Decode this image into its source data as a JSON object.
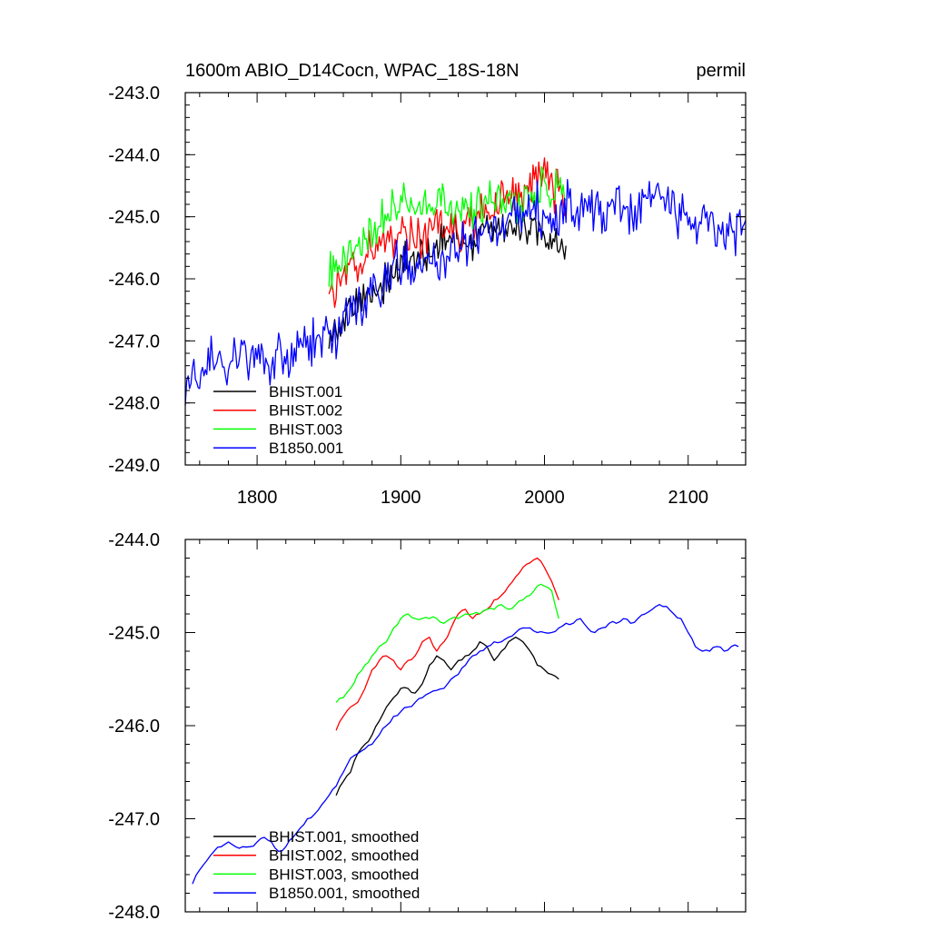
{
  "chart_data": [
    {
      "type": "line",
      "title": "1600m ABIO_D14Cocn, WPAC_18S-18N",
      "units": "permil",
      "xlim": [
        1750,
        2140
      ],
      "ylim": [
        -249.0,
        -243.0
      ],
      "xticks": [
        "1800",
        "1900",
        "2000",
        "2100"
      ],
      "yticks": [
        "-243.0",
        "-244.0",
        "-245.0",
        "-246.0",
        "-247.0",
        "-248.0",
        "-249.0"
      ],
      "legend": {
        "position": "bottom-left"
      },
      "series": [
        {
          "name": "BHIST.001",
          "color": "#000000",
          "noise": 0.3,
          "x": [
            1850,
            1855,
            1860,
            1870,
            1880,
            1890,
            1900,
            1910,
            1920,
            1930,
            1940,
            1950,
            1960,
            1970,
            1980,
            1990,
            2000,
            2005,
            2010,
            2015
          ],
          "y": [
            -246.9,
            -246.8,
            -246.7,
            -246.4,
            -246.2,
            -246.0,
            -245.8,
            -245.7,
            -245.6,
            -245.4,
            -245.3,
            -245.4,
            -245.2,
            -245.1,
            -245.2,
            -245.2,
            -245.3,
            -245.4,
            -245.5,
            -245.6
          ]
        },
        {
          "name": "BHIST.002",
          "color": "#ff0000",
          "noise": 0.35,
          "x": [
            1850,
            1855,
            1860,
            1870,
            1880,
            1890,
            1900,
            1910,
            1920,
            1930,
            1940,
            1950,
            1960,
            1970,
            1980,
            1990,
            2000,
            2005,
            2010,
            2015
          ],
          "y": [
            -246.0,
            -246.0,
            -245.9,
            -245.8,
            -245.5,
            -245.4,
            -245.3,
            -245.3,
            -245.2,
            -245.1,
            -245.3,
            -245.0,
            -244.9,
            -244.8,
            -244.6,
            -244.4,
            -244.3,
            -244.5,
            -244.6,
            -244.8
          ]
        },
        {
          "name": "BHIST.003",
          "color": "#00ff00",
          "noise": 0.35,
          "x": [
            1850,
            1855,
            1860,
            1870,
            1880,
            1890,
            1900,
            1910,
            1920,
            1930,
            1940,
            1950,
            1960,
            1970,
            1980,
            1990,
            2000,
            2005,
            2010,
            2015
          ],
          "y": [
            -245.9,
            -245.8,
            -245.7,
            -245.5,
            -245.2,
            -245.0,
            -244.85,
            -244.85,
            -244.85,
            -244.9,
            -244.9,
            -244.85,
            -244.8,
            -244.8,
            -244.75,
            -244.7,
            -244.6,
            -244.55,
            -244.6,
            -244.8
          ]
        },
        {
          "name": "B1850.001",
          "color": "#0000ff",
          "noise": 0.4,
          "x": [
            1750,
            1760,
            1770,
            1780,
            1790,
            1800,
            1810,
            1820,
            1830,
            1840,
            1850,
            1855,
            1860,
            1870,
            1880,
            1890,
            1900,
            1910,
            1920,
            1930,
            1940,
            1950,
            1960,
            1970,
            1980,
            1990,
            2000,
            2010,
            2020,
            2030,
            2040,
            2050,
            2060,
            2070,
            2080,
            2090,
            2100,
            2110,
            2120,
            2130,
            2140
          ],
          "y": [
            -247.8,
            -247.5,
            -247.4,
            -247.3,
            -247.3,
            -247.3,
            -247.4,
            -247.3,
            -247.1,
            -246.9,
            -246.7,
            -247.0,
            -246.6,
            -246.4,
            -246.2,
            -246.0,
            -245.8,
            -245.8,
            -245.7,
            -245.6,
            -245.5,
            -245.3,
            -245.2,
            -245.1,
            -245.0,
            -244.9,
            -245.0,
            -245.0,
            -244.9,
            -244.85,
            -244.9,
            -244.95,
            -245.0,
            -244.8,
            -244.7,
            -244.8,
            -245.0,
            -245.1,
            -245.15,
            -245.2,
            -245.1
          ]
        }
      ]
    },
    {
      "type": "line",
      "xlim": [
        1750,
        2140
      ],
      "ylim": [
        -248.0,
        -244.0
      ],
      "yticks": [
        "-244.0",
        "-245.0",
        "-246.0",
        "-247.0",
        "-248.0"
      ],
      "legend": {
        "position": "bottom-left"
      },
      "series": [
        {
          "name": "BHIST.001, smoothed",
          "color": "#000000",
          "x": [
            1855,
            1860,
            1865,
            1870,
            1875,
            1880,
            1885,
            1890,
            1895,
            1900,
            1905,
            1910,
            1915,
            1920,
            1925,
            1930,
            1935,
            1940,
            1945,
            1950,
            1955,
            1960,
            1965,
            1970,
            1975,
            1980,
            1985,
            1990,
            1995,
            2000,
            2005,
            2010
          ],
          "y": [
            -246.75,
            -246.6,
            -246.5,
            -246.3,
            -246.2,
            -246.1,
            -245.95,
            -245.8,
            -245.7,
            -245.6,
            -245.6,
            -245.65,
            -245.55,
            -245.35,
            -245.25,
            -245.3,
            -245.4,
            -245.3,
            -245.25,
            -245.2,
            -245.1,
            -245.15,
            -245.3,
            -245.2,
            -245.1,
            -245.05,
            -245.1,
            -245.2,
            -245.35,
            -245.4,
            -245.45,
            -245.5
          ]
        },
        {
          "name": "BHIST.002, smoothed",
          "color": "#ff0000",
          "x": [
            1855,
            1860,
            1865,
            1870,
            1875,
            1880,
            1885,
            1890,
            1895,
            1900,
            1905,
            1910,
            1915,
            1920,
            1925,
            1930,
            1935,
            1940,
            1945,
            1950,
            1955,
            1960,
            1965,
            1970,
            1975,
            1980,
            1985,
            1990,
            1995,
            2000,
            2005,
            2010
          ],
          "y": [
            -246.05,
            -245.9,
            -245.8,
            -245.75,
            -245.6,
            -245.4,
            -245.3,
            -245.25,
            -245.3,
            -245.4,
            -245.3,
            -245.25,
            -245.1,
            -245.05,
            -245.2,
            -245.1,
            -244.95,
            -244.8,
            -244.75,
            -244.85,
            -244.8,
            -244.75,
            -244.65,
            -244.6,
            -244.5,
            -244.4,
            -244.3,
            -244.25,
            -244.2,
            -244.3,
            -244.45,
            -244.65
          ]
        },
        {
          "name": "BHIST.003, smoothed",
          "color": "#00ff00",
          "x": [
            1855,
            1860,
            1865,
            1870,
            1875,
            1880,
            1885,
            1890,
            1895,
            1900,
            1905,
            1910,
            1915,
            1920,
            1925,
            1930,
            1935,
            1940,
            1945,
            1950,
            1955,
            1960,
            1965,
            1970,
            1975,
            1980,
            1985,
            1990,
            1995,
            2000,
            2005,
            2010
          ],
          "y": [
            -245.75,
            -245.7,
            -245.6,
            -245.45,
            -245.35,
            -245.25,
            -245.15,
            -245.1,
            -244.95,
            -244.85,
            -244.8,
            -244.85,
            -244.85,
            -244.85,
            -244.85,
            -244.9,
            -244.85,
            -244.85,
            -244.8,
            -244.8,
            -244.8,
            -244.75,
            -244.75,
            -244.7,
            -244.75,
            -244.7,
            -244.65,
            -244.6,
            -244.5,
            -244.5,
            -244.55,
            -244.85
          ]
        },
        {
          "name": "B1850.001, smoothed",
          "color": "#0000ff",
          "x": [
            1755,
            1760,
            1765,
            1770,
            1775,
            1780,
            1785,
            1790,
            1795,
            1800,
            1805,
            1810,
            1815,
            1820,
            1825,
            1830,
            1835,
            1840,
            1845,
            1850,
            1855,
            1860,
            1865,
            1870,
            1875,
            1880,
            1885,
            1890,
            1895,
            1900,
            1905,
            1910,
            1915,
            1920,
            1925,
            1930,
            1935,
            1940,
            1945,
            1950,
            1955,
            1960,
            1965,
            1970,
            1975,
            1980,
            1985,
            1990,
            1995,
            2000,
            2005,
            2010,
            2015,
            2020,
            2025,
            2030,
            2035,
            2040,
            2045,
            2050,
            2055,
            2060,
            2065,
            2070,
            2075,
            2080,
            2085,
            2090,
            2095,
            2100,
            2105,
            2110,
            2115,
            2120,
            2125,
            2130,
            2135
          ],
          "y": [
            -247.7,
            -247.55,
            -247.45,
            -247.35,
            -247.3,
            -247.25,
            -247.3,
            -247.3,
            -247.3,
            -247.25,
            -247.2,
            -247.25,
            -247.35,
            -247.3,
            -247.2,
            -247.1,
            -247.0,
            -246.95,
            -246.85,
            -246.75,
            -246.65,
            -246.5,
            -246.35,
            -246.3,
            -246.25,
            -246.2,
            -246.1,
            -246.0,
            -245.9,
            -245.85,
            -245.8,
            -245.75,
            -245.7,
            -245.65,
            -245.62,
            -245.6,
            -245.5,
            -245.45,
            -245.35,
            -245.25,
            -245.2,
            -245.15,
            -245.1,
            -245.1,
            -245.05,
            -245.0,
            -244.95,
            -244.95,
            -245.0,
            -245.0,
            -245.0,
            -244.95,
            -244.9,
            -244.9,
            -244.85,
            -244.95,
            -245.0,
            -244.95,
            -244.9,
            -244.9,
            -244.85,
            -244.9,
            -244.85,
            -244.8,
            -244.75,
            -244.7,
            -244.72,
            -244.8,
            -244.85,
            -245.0,
            -245.15,
            -245.2,
            -245.2,
            -245.15,
            -245.2,
            -245.15,
            -245.15
          ]
        }
      ]
    }
  ]
}
